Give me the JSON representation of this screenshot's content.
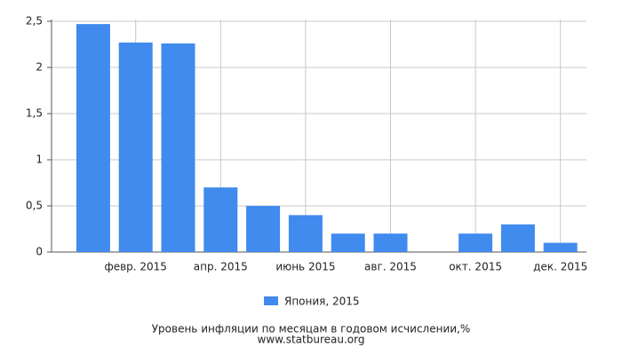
{
  "chart_data": {
    "type": "bar",
    "title": "Уровень инфляции по месяцам в годовом исчислении,%",
    "subtitle": "www.statbureau.org",
    "categories": [
      null,
      "февр. 2015",
      null,
      "апр. 2015",
      null,
      "июнь 2015",
      null,
      "авг. 2015",
      null,
      "окт. 2015",
      null,
      "дек. 2015"
    ],
    "series": [
      {
        "name": "Япония, 2015",
        "color": "#418aee",
        "values": [
          2.47,
          2.27,
          2.26,
          0.7,
          0.5,
          0.4,
          0.2,
          0.2,
          0,
          0.2,
          0.3,
          0.1
        ]
      }
    ],
    "ylim": [
      0,
      2.5
    ],
    "yticks": [
      0,
      {
        "value": 0.5,
        "label": "0,5"
      },
      1,
      {
        "value": 1.5,
        "label": "1,5"
      },
      2,
      {
        "value": 2.5,
        "label": "2,5"
      }
    ],
    "grid": true
  }
}
